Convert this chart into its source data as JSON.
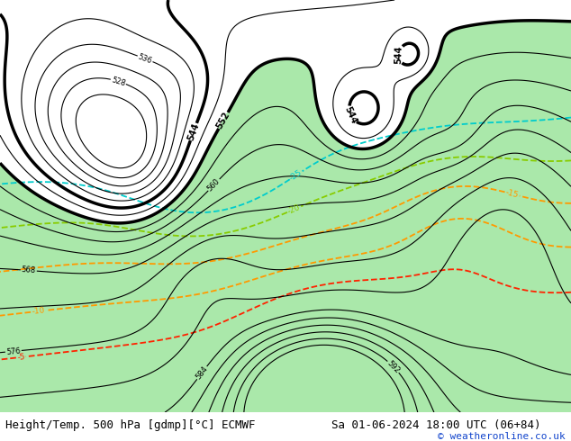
{
  "title_left": "Height/Temp. 500 hPa [gdmp][°C] ECMWF",
  "title_right": "Sa 01-06-2024 18:00 UTC (06+84)",
  "copyright": "© weatheronline.co.uk",
  "bg_color": "#d0d0d0",
  "land_color": "#c0c0c0",
  "ocean_color": "#d8d8d8",
  "green_fill_color": "#aae8aa",
  "height_contour_color": "#000000",
  "temp_colors": {
    "-25": "#00cccc",
    "-20": "#88cc00",
    "-15": "#ff9900",
    "-10": "#ff9900",
    "-5": "#ff2200"
  },
  "title_fontsize": 9,
  "figsize": [
    6.34,
    4.9
  ],
  "dpi": 100,
  "lon_min": -175,
  "lon_max": -50,
  "lat_min": 15,
  "lat_max": 82
}
